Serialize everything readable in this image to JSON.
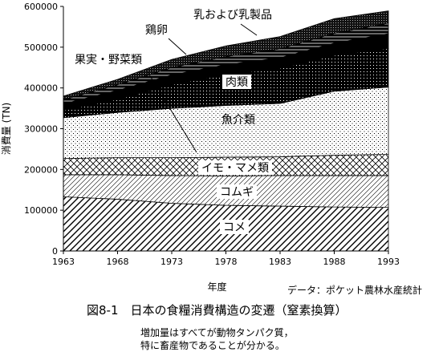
{
  "chart_data": {
    "type": "area",
    "stacked": true,
    "title": "",
    "xlabel": "年度",
    "ylabel": "消費量 (TN)",
    "x": [
      1963,
      1968,
      1973,
      1978,
      1983,
      1988,
      1993
    ],
    "xticks": [
      "1963",
      "1968",
      "1973",
      "1978",
      "1983",
      "1988",
      "1993"
    ],
    "ylim": [
      0,
      600000
    ],
    "yticks": [
      "0",
      "100000",
      "200000",
      "300000",
      "400000",
      "500000",
      "600000"
    ],
    "grid": false,
    "legend": "inline labels",
    "series": [
      {
        "name": "コメ",
        "pattern": "diagonal-hatch",
        "values": [
          133000,
          127000,
          117000,
          112000,
          110000,
          108000,
          107000
        ]
      },
      {
        "name": "コムギ",
        "pattern": "light-diagonal-hatch",
        "values": [
          54000,
          60000,
          68000,
          72000,
          75000,
          77000,
          78000
        ]
      },
      {
        "name": "イモ・マメ類",
        "pattern": "cross-hatch",
        "values": [
          40000,
          42000,
          44000,
          46000,
          46000,
          50000,
          52000
        ]
      },
      {
        "name": "魚介類",
        "pattern": "dots",
        "values": [
          100000,
          111000,
          121000,
          127000,
          131000,
          157000,
          165000
        ]
      },
      {
        "name": "肉類",
        "pattern": "dense-dots",
        "values": [
          18000,
          32000,
          58000,
          76000,
          86000,
          88000,
          95000
        ]
      },
      {
        "name": "果実・野菜類",
        "pattern": "solid-black",
        "values": [
          16000,
          22000,
          24000,
          24000,
          26000,
          30000,
          36000
        ]
      },
      {
        "name": "鶏卵",
        "pattern": "stripes",
        "values": [
          10000,
          14000,
          18000,
          20000,
          22000,
          24000,
          26000
        ]
      },
      {
        "name": "乳および乳製品",
        "pattern": "dark-dots",
        "values": [
          9000,
          13000,
          20000,
          26000,
          30000,
          36000,
          30000
        ]
      }
    ]
  },
  "source_note": "データ：ポケット農林水産統計",
  "figure_caption": "図8-1　日本の食糧消費構造の変遷（窒素換算）",
  "notes": [
    "増加量はすべてが動物タンパク質，",
    "特に畜産物であることが分かる。"
  ]
}
